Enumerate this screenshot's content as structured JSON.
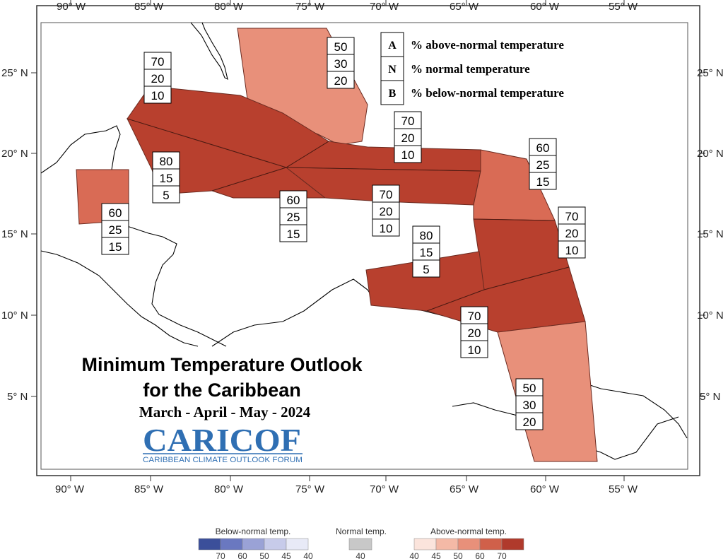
{
  "map": {
    "title_line1": "Minimum Temperature Outlook",
    "title_line2": "for the Caribbean",
    "season": "March - April - May - 2024",
    "logo_text": "CARICOF",
    "logo_subtitle": "CARIBBEAN CLIMATE OUTLOOK FORUM",
    "lon_ticks": [
      "90° W",
      "85° W",
      "80° W",
      "75° W",
      "70° W",
      "65° W",
      "60° W",
      "55° W"
    ],
    "lat_ticks": [
      "25° N",
      "20° N",
      "15° N",
      "10° N",
      "5° N"
    ],
    "key": [
      {
        "letter": "A",
        "text": "% above-normal temperature"
      },
      {
        "letter": "N",
        "text": "% normal temperature"
      },
      {
        "letter": "B",
        "text": "% below-normal temperature"
      }
    ],
    "regions": [
      {
        "id": "bahamas",
        "above": "50",
        "normal": "30",
        "below": "20",
        "color": "#e8907a"
      },
      {
        "id": "cuba-west",
        "above": "70",
        "normal": "20",
        "below": "10",
        "color": "#b8402e"
      },
      {
        "id": "cayman",
        "above": "80",
        "normal": "15",
        "below": "5",
        "color": "#b8402e"
      },
      {
        "id": "jamaica",
        "above": "60",
        "normal": "25",
        "below": "15",
        "color": "#b8402e"
      },
      {
        "id": "hispaniola-north",
        "above": "70",
        "normal": "20",
        "below": "10",
        "color": "#b8402e"
      },
      {
        "id": "hispaniola-south",
        "above": "70",
        "normal": "20",
        "below": "10",
        "color": "#b8402e"
      },
      {
        "id": "leeward",
        "above": "60",
        "normal": "25",
        "below": "15",
        "color": "#d96b55"
      },
      {
        "id": "windward",
        "above": "70",
        "normal": "20",
        "below": "10",
        "color": "#b8402e"
      },
      {
        "id": "abc-islands",
        "above": "80",
        "normal": "15",
        "below": "5",
        "color": "#b8402e"
      },
      {
        "id": "trinidad",
        "above": "70",
        "normal": "20",
        "below": "10",
        "color": "#b8402e"
      },
      {
        "id": "belize",
        "above": "60",
        "normal": "25",
        "below": "15",
        "color": "#d96b55"
      },
      {
        "id": "guianas",
        "above": "50",
        "normal": "30",
        "below": "20",
        "color": "#e8907a"
      }
    ]
  },
  "legend": {
    "below_title": "Below-normal temp.",
    "normal_title": "Normal temp.",
    "above_title": "Above-normal temp.",
    "below_values": [
      "70",
      "60",
      "50",
      "45",
      "40"
    ],
    "normal_values": [
      "40"
    ],
    "above_values": [
      "40",
      "45",
      "50",
      "60",
      "70"
    ],
    "below_colors": [
      "#3b4f9a",
      "#6a78c0",
      "#9aa2d6",
      "#c7cbea",
      "#e8eaf7"
    ],
    "normal_color": "#c8c8c8",
    "above_colors": [
      "#fbe4dc",
      "#f4b9a6",
      "#e8907a",
      "#d0604a",
      "#b03a2c"
    ]
  }
}
